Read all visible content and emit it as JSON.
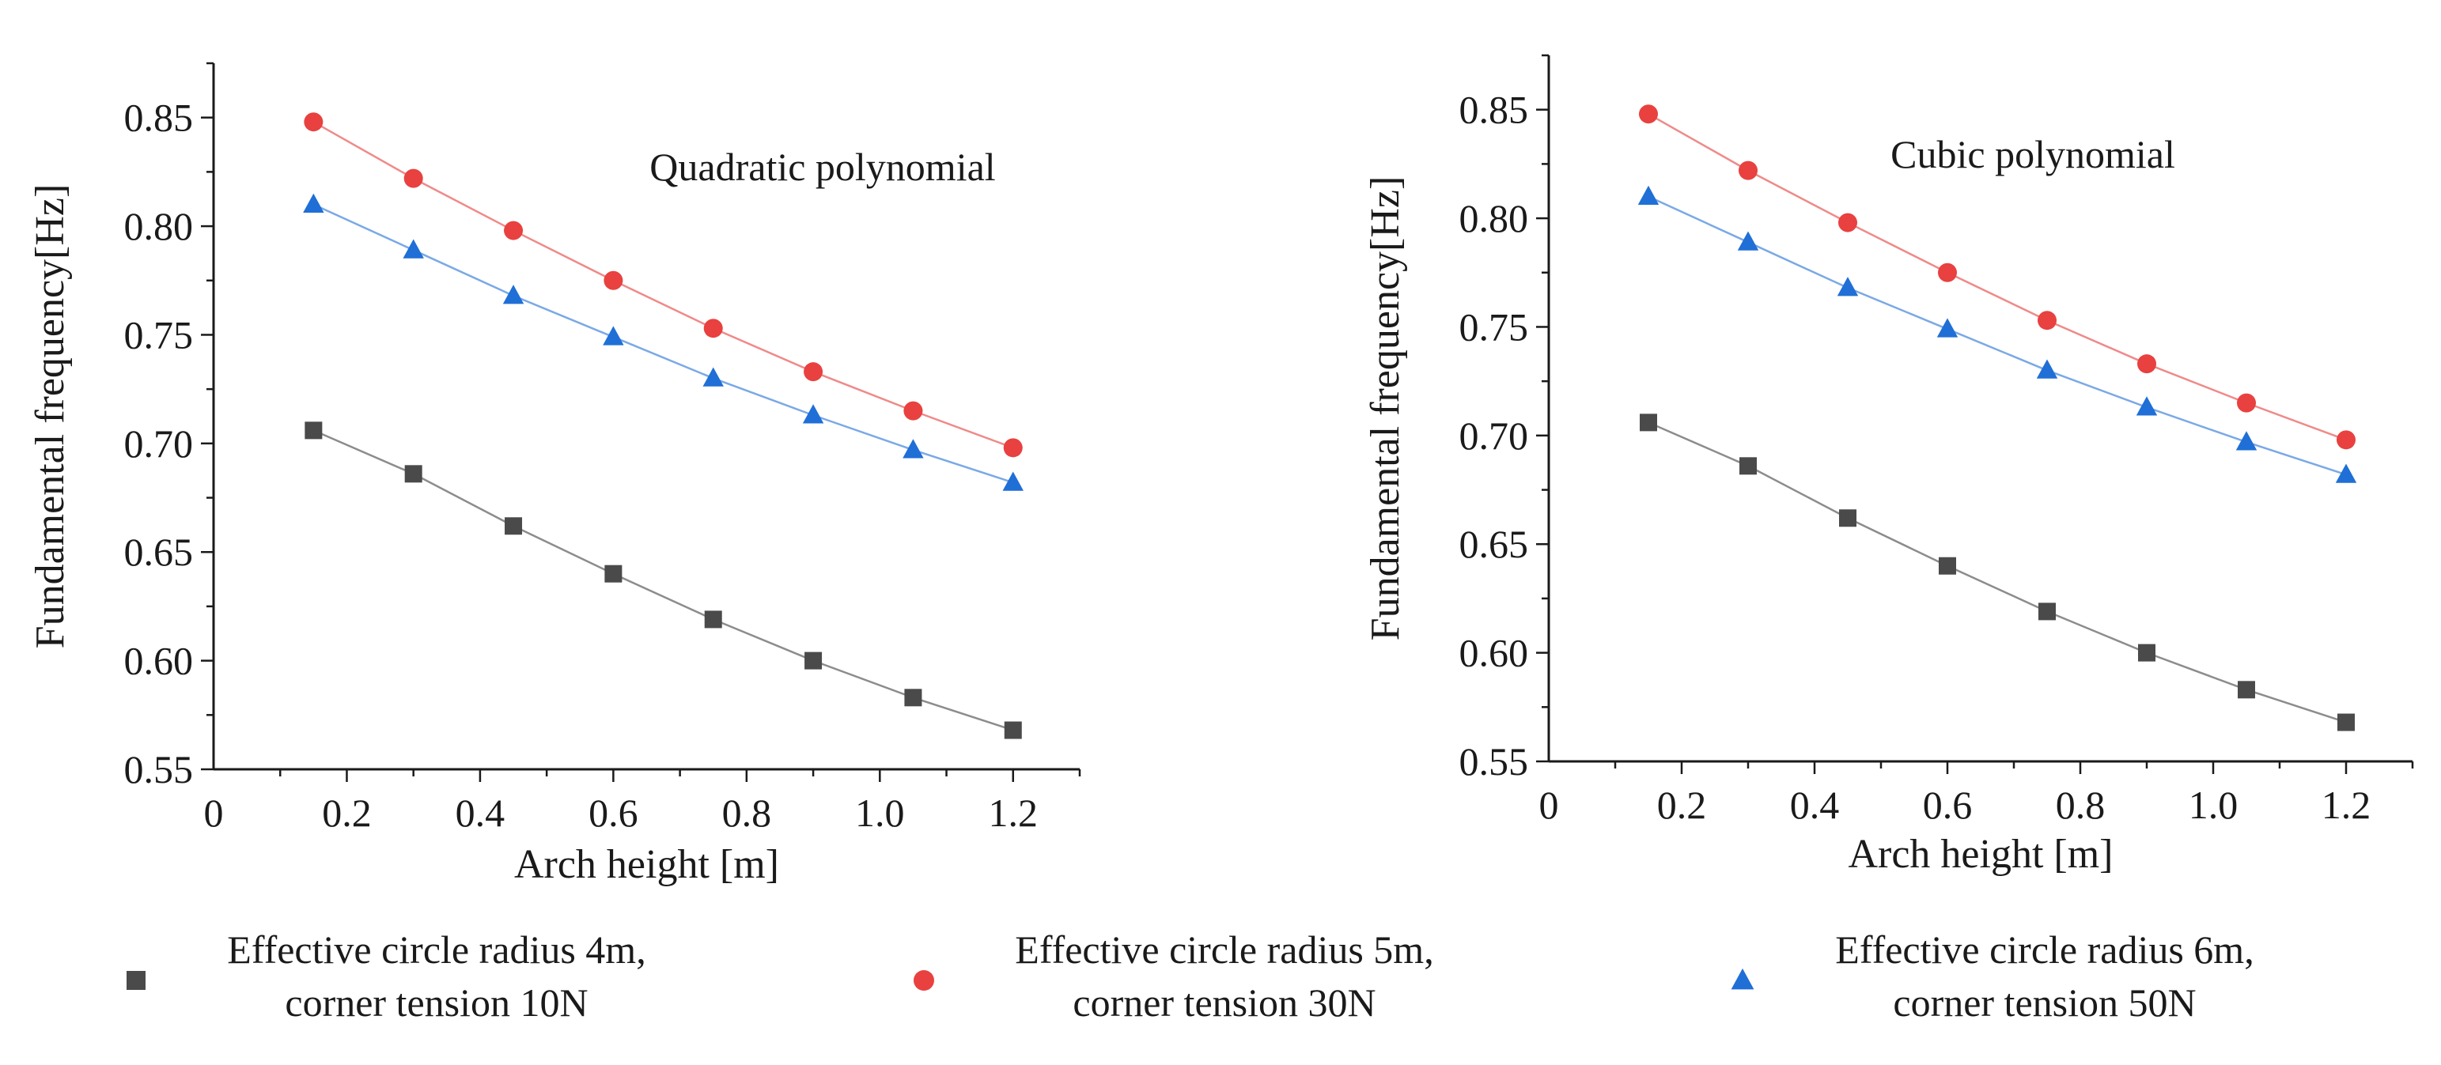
{
  "chart_data": [
    {
      "type": "line",
      "annotation": "Quadratic polynomial",
      "xlabel": "Arch height [m]",
      "ylabel": "Fundamental frequency[Hz]",
      "xlim": [
        0,
        1.3
      ],
      "ylim": [
        0.55,
        0.875
      ],
      "xticks": [
        "0",
        "0.2",
        "0.4",
        "0.6",
        "0.8",
        "1.0",
        "1.2"
      ],
      "yticks": [
        "0.55",
        "0.60",
        "0.65",
        "0.70",
        "0.75",
        "0.80",
        "0.85"
      ],
      "grid": false,
      "x": [
        0.15,
        0.3,
        0.45,
        0.6,
        0.75,
        0.9,
        1.05,
        1.2
      ],
      "series": [
        {
          "name": "Effective circle radius 4m, corner tension 10N",
          "marker": "square",
          "color": "#4a4a4a",
          "line_color": "#8c8c8c",
          "values": [
            0.706,
            0.686,
            0.662,
            0.64,
            0.619,
            0.6,
            0.583,
            0.568
          ]
        },
        {
          "name": "Effective circle radius 5m, corner tension 30N",
          "marker": "circle",
          "color": "#e8413f",
          "line_color": "#ef8a89",
          "values": [
            0.848,
            0.822,
            0.798,
            0.775,
            0.753,
            0.733,
            0.715,
            0.698
          ]
        },
        {
          "name": "Effective circle radius 6m, corner tension 50N",
          "marker": "triangle",
          "color": "#1f6fd6",
          "line_color": "#7aa9e6",
          "values": [
            0.81,
            0.789,
            0.768,
            0.749,
            0.73,
            0.713,
            0.697,
            0.682
          ]
        }
      ]
    },
    {
      "type": "line",
      "annotation": "Cubic polynomial",
      "xlabel": "Arch height [m]",
      "ylabel": "Fundamental frequency[Hz]",
      "xlim": [
        0,
        1.3
      ],
      "ylim": [
        0.55,
        0.875
      ],
      "xticks": [
        "0",
        "0.2",
        "0.4",
        "0.6",
        "0.8",
        "1.0",
        "1.2"
      ],
      "yticks": [
        "0.55",
        "0.60",
        "0.65",
        "0.70",
        "0.75",
        "0.80",
        "0.85"
      ],
      "grid": false,
      "x": [
        0.15,
        0.3,
        0.45,
        0.6,
        0.75,
        0.9,
        1.05,
        1.2
      ],
      "series": [
        {
          "name": "Effective circle radius 4m, corner tension 10N",
          "marker": "square",
          "color": "#4a4a4a",
          "line_color": "#8c8c8c",
          "values": [
            0.706,
            0.686,
            0.662,
            0.64,
            0.619,
            0.6,
            0.583,
            0.568
          ]
        },
        {
          "name": "Effective circle radius 5m, corner tension 30N",
          "marker": "circle",
          "color": "#e8413f",
          "line_color": "#ef8a89",
          "values": [
            0.848,
            0.822,
            0.798,
            0.775,
            0.753,
            0.733,
            0.715,
            0.698
          ]
        },
        {
          "name": "Effective circle radius 6m, corner tension 50N",
          "marker": "triangle",
          "color": "#1f6fd6",
          "line_color": "#7aa9e6",
          "values": [
            0.81,
            0.789,
            0.768,
            0.749,
            0.73,
            0.713,
            0.697,
            0.682
          ]
        }
      ]
    }
  ],
  "legend": {
    "placement": "bottom",
    "items": [
      {
        "marker": "square",
        "color": "#4a4a4a",
        "line1": "Effective circle radius 4m,",
        "line2": "corner tension 10N"
      },
      {
        "marker": "circle",
        "color": "#e8413f",
        "line1": "Effective circle radius 5m,",
        "line2": "corner tension 30N"
      },
      {
        "marker": "triangle",
        "color": "#1f6fd6",
        "line1": "Effective circle radius 6m,",
        "line2": "corner tension 50N"
      }
    ]
  }
}
